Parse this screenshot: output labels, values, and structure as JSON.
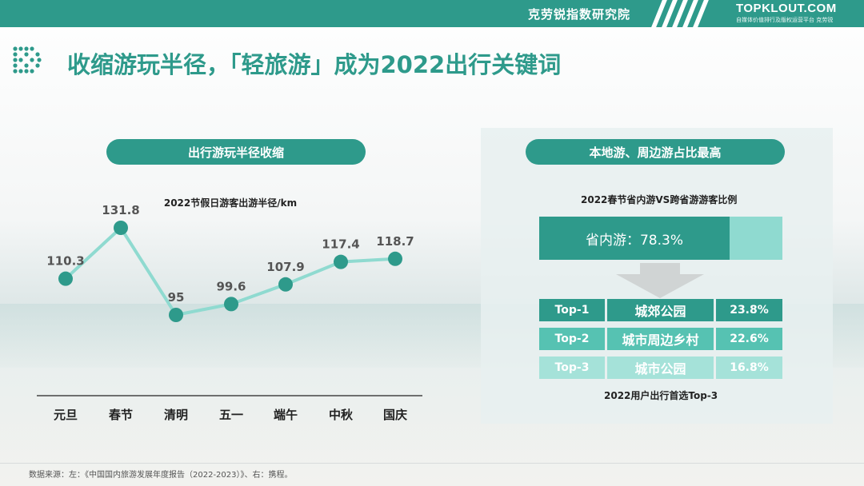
{
  "header": {
    "org_name": "克劳锐指数研究院",
    "brand_main": "TOPKLOUT.COM",
    "brand_sub": "自媒体价值排行及版权运营平台 克劳锐"
  },
  "page": {
    "title": "收缩游玩半径，「轻旅游」成为2022出行关键词"
  },
  "left_panel": {
    "pill_label": "出行游玩半径收缩"
  },
  "right_panel": {
    "pill_label": "本地游、周边游占比最高",
    "ratio_title": "2022春节省内游VS跨省游游客比例",
    "ratio_label": "省内游：78.3%",
    "ratio_value": 78.3,
    "top_title": "2022用户出行首选Top-3",
    "top_items": [
      {
        "rank": "Top-1",
        "place": "城郊公园",
        "pct": "23.8%",
        "color": "#2e9a8b"
      },
      {
        "rank": "Top-2",
        "place": "城市周边乡村",
        "pct": "22.6%",
        "color": "#56c2b2"
      },
      {
        "rank": "Top-3",
        "place": "城市公园",
        "pct": "16.8%",
        "color": "#a5e2d9"
      }
    ]
  },
  "chart_data": {
    "type": "line",
    "title": "2022节假日游客出游半径/km",
    "categories": [
      "元旦",
      "春节",
      "清明",
      "五一",
      "端午",
      "中秋",
      "国庆"
    ],
    "values": [
      110.3,
      131.8,
      95,
      99.6,
      107.9,
      117.4,
      118.7
    ],
    "value_labels": [
      "110.3",
      "131.8",
      "95",
      "99.6",
      "107.9",
      "117.4",
      "118.7"
    ],
    "ylim": [
      95,
      131.8
    ],
    "grid": false,
    "line_color": "#8fdad0",
    "point_color": "#2e9a8b"
  },
  "footnote": "数据来源：左：《中国国内旅游发展年度报告（2022-2023）》、右：携程。"
}
